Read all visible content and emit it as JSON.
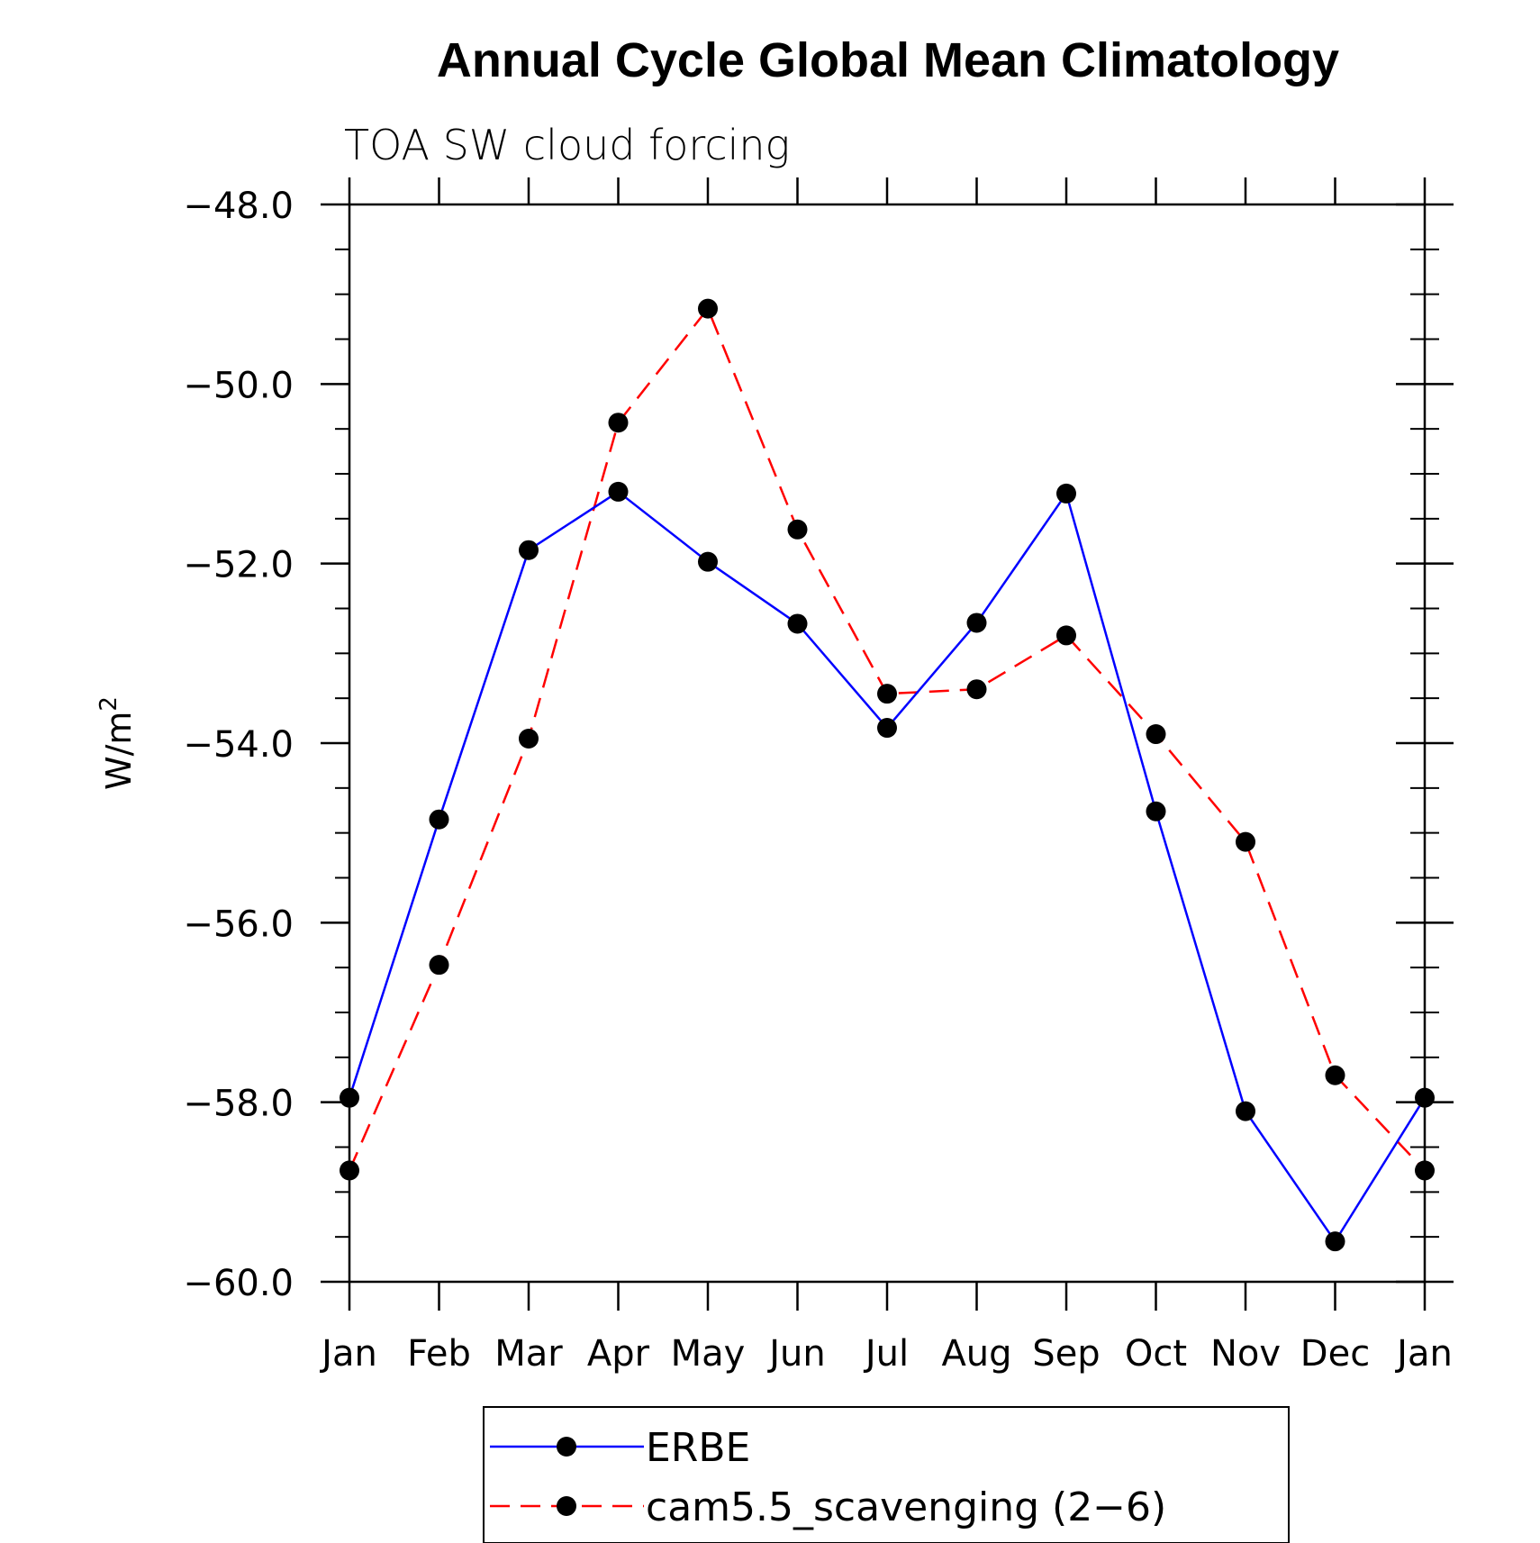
{
  "chart_data": {
    "type": "line",
    "title": "Annual Cycle Global Mean Climatology",
    "subtitle": "TOA SW cloud forcing",
    "ylabel": "W/m",
    "ylabel_superscript": "2",
    "xlabel": "",
    "categories": [
      "Jan",
      "Feb",
      "Mar",
      "Apr",
      "May",
      "Jun",
      "Jul",
      "Aug",
      "Sep",
      "Oct",
      "Nov",
      "Dec",
      "Jan"
    ],
    "ylim": [
      -60,
      -48
    ],
    "yticks": [
      -48,
      -50,
      -52,
      -54,
      -56,
      -58,
      -60
    ],
    "ytick_labels": [
      "−48.0",
      "−50.0",
      "−52.0",
      "−54.0",
      "−56.0",
      "−58.0",
      "−60.0"
    ],
    "series": [
      {
        "name": "ERBE",
        "color": "#0000ff",
        "dash": "solid",
        "values": [
          -57.95,
          -54.85,
          -51.85,
          -51.2,
          -51.98,
          -52.67,
          -53.83,
          -52.66,
          -51.22,
          -54.76,
          -58.1,
          -59.55,
          -57.95
        ]
      },
      {
        "name": "cam5.5_scavenging (2−6)",
        "color": "#ff0000",
        "dash": "dashed",
        "values": [
          -58.76,
          -56.47,
          -53.95,
          -50.43,
          -49.16,
          -51.62,
          -53.45,
          -53.4,
          -52.8,
          -53.9,
          -55.1,
          -57.7,
          -58.76
        ]
      }
    ],
    "legend": {
      "position": "bottom-center",
      "items": [
        "ERBE",
        "cam5.5_scavenging (2−6)"
      ]
    }
  }
}
